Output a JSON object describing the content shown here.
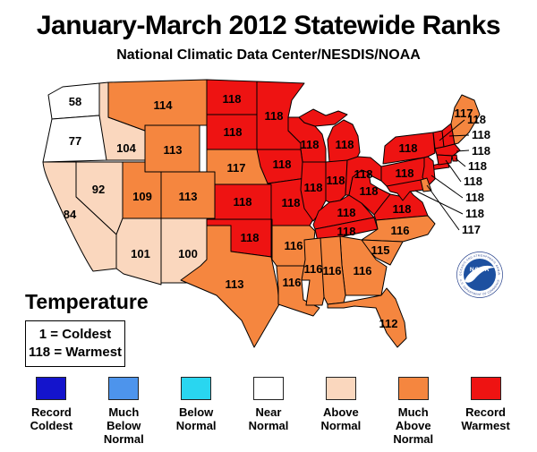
{
  "title": "January-March 2012 Statewide Ranks",
  "subtitle": "National Climatic Data Center/NESDIS/NOAA",
  "temperature_section": {
    "heading": "Temperature",
    "scale_note_line1": "1 = Coldest",
    "scale_note_line2": "118 = Warmest"
  },
  "legend": {
    "categories": [
      {
        "key": "record_coldest",
        "label": "Record\nColdest",
        "color": "#1414CC"
      },
      {
        "key": "much_below_normal",
        "label": "Much\nBelow\nNormal",
        "color": "#4D94EC"
      },
      {
        "key": "below_normal",
        "label": "Below\nNormal",
        "color": "#29D6F0"
      },
      {
        "key": "near_normal",
        "label": "Near\nNormal",
        "color": "#FFFFFF"
      },
      {
        "key": "above_normal",
        "label": "Above\nNormal",
        "color": "#FAD7BE"
      },
      {
        "key": "much_above_normal",
        "label": "Much\nAbove\nNormal",
        "color": "#F5863F"
      },
      {
        "key": "record_warmest",
        "label": "Record\nWarmest",
        "color": "#EE1312"
      }
    ]
  },
  "logo": {
    "text": "NOAA",
    "ring_text_top": "NATIONAL OCEANIC AND ATMOSPHERIC ADMINISTRATION",
    "ring_text_bottom": "U.S. DEPARTMENT OF COMMERCE"
  },
  "chart_data": {
    "type": "choropleth",
    "title": "January-March 2012 Statewide Ranks",
    "rank_scale": {
      "min": 1,
      "max": 118,
      "min_label": "1 = Coldest",
      "max_label": "118 = Warmest"
    },
    "states": [
      {
        "code": "WA",
        "rank": 58,
        "category": "near_normal"
      },
      {
        "code": "OR",
        "rank": 77,
        "category": "near_normal"
      },
      {
        "code": "CA",
        "rank": 84,
        "category": "above_normal"
      },
      {
        "code": "NV",
        "rank": 92,
        "category": "above_normal"
      },
      {
        "code": "ID",
        "rank": 104,
        "category": "above_normal"
      },
      {
        "code": "AZ",
        "rank": 101,
        "category": "above_normal"
      },
      {
        "code": "NM",
        "rank": 100,
        "category": "above_normal"
      },
      {
        "code": "MT",
        "rank": 114,
        "category": "much_above_normal"
      },
      {
        "code": "WY",
        "rank": 113,
        "category": "much_above_normal"
      },
      {
        "code": "UT",
        "rank": 109,
        "category": "much_above_normal"
      },
      {
        "code": "CO",
        "rank": 113,
        "category": "much_above_normal"
      },
      {
        "code": "NE",
        "rank": 117,
        "category": "much_above_normal"
      },
      {
        "code": "TX",
        "rank": 113,
        "category": "much_above_normal"
      },
      {
        "code": "AR",
        "rank": 116,
        "category": "much_above_normal"
      },
      {
        "code": "LA",
        "rank": 116,
        "category": "much_above_normal"
      },
      {
        "code": "MS",
        "rank": 116,
        "category": "much_above_normal"
      },
      {
        "code": "AL",
        "rank": 116,
        "category": "much_above_normal"
      },
      {
        "code": "GA",
        "rank": 116,
        "category": "much_above_normal"
      },
      {
        "code": "FL",
        "rank": 112,
        "category": "much_above_normal"
      },
      {
        "code": "SC",
        "rank": 115,
        "category": "much_above_normal"
      },
      {
        "code": "NC",
        "rank": 116,
        "category": "much_above_normal"
      },
      {
        "code": "ME",
        "rank": 117,
        "category": "much_above_normal"
      },
      {
        "code": "DE",
        "rank": 117,
        "category": "much_above_normal"
      },
      {
        "code": "ND",
        "rank": 118,
        "category": "record_warmest"
      },
      {
        "code": "SD",
        "rank": 118,
        "category": "record_warmest"
      },
      {
        "code": "MN",
        "rank": 118,
        "category": "record_warmest"
      },
      {
        "code": "WI",
        "rank": 118,
        "category": "record_warmest"
      },
      {
        "code": "MI",
        "rank": 118,
        "category": "record_warmest"
      },
      {
        "code": "IA",
        "rank": 118,
        "category": "record_warmest"
      },
      {
        "code": "IL",
        "rank": 118,
        "category": "record_warmest"
      },
      {
        "code": "IN",
        "rank": 118,
        "category": "record_warmest"
      },
      {
        "code": "OH",
        "rank": 118,
        "category": "record_warmest"
      },
      {
        "code": "MO",
        "rank": 118,
        "category": "record_warmest"
      },
      {
        "code": "KS",
        "rank": 118,
        "category": "record_warmest"
      },
      {
        "code": "OK",
        "rank": 118,
        "category": "record_warmest"
      },
      {
        "code": "KY",
        "rank": 118,
        "category": "record_warmest"
      },
      {
        "code": "TN",
        "rank": 118,
        "category": "record_warmest"
      },
      {
        "code": "WV",
        "rank": 118,
        "category": "record_warmest"
      },
      {
        "code": "VA",
        "rank": 118,
        "category": "record_warmest"
      },
      {
        "code": "PA",
        "rank": 118,
        "category": "record_warmest"
      },
      {
        "code": "NY",
        "rank": 118,
        "category": "record_warmest"
      },
      {
        "code": "MD",
        "rank": 118,
        "category": "record_warmest"
      },
      {
        "code": "NJ",
        "rank": 118,
        "category": "record_warmest"
      },
      {
        "code": "CT",
        "rank": 118,
        "category": "record_warmest"
      },
      {
        "code": "RI",
        "rank": 118,
        "category": "record_warmest"
      },
      {
        "code": "MA",
        "rank": 118,
        "category": "record_warmest"
      },
      {
        "code": "VT",
        "rank": 118,
        "category": "record_warmest"
      },
      {
        "code": "NH",
        "rank": 118,
        "category": "record_warmest"
      }
    ]
  }
}
